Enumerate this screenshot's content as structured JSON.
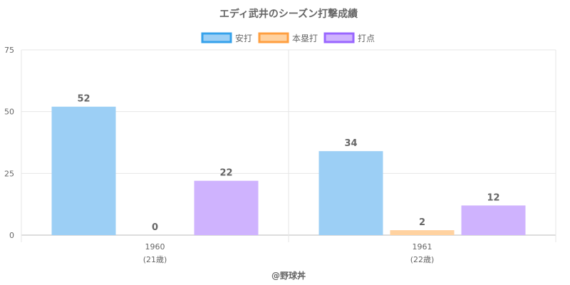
{
  "chart_data": {
    "type": "bar",
    "title": "エディ武井のシーズン打撃成績",
    "categories": [
      {
        "year": "1960",
        "age": "(21歳)"
      },
      {
        "year": "1961",
        "age": "(22歳)"
      }
    ],
    "series": [
      {
        "name": "安打",
        "values": [
          52,
          34
        ],
        "fill": "#9ccff5",
        "stroke": "#36a2eb"
      },
      {
        "name": "本塁打",
        "values": [
          0,
          2
        ],
        "fill": "#ffd2a0",
        "stroke": "#ff9f40"
      },
      {
        "name": "打点",
        "values": [
          22,
          12
        ],
        "fill": "#cfb3fe",
        "stroke": "#9966ff"
      }
    ],
    "ylim": [
      0,
      75
    ],
    "yticks": [
      0,
      25,
      50,
      75
    ],
    "grid": true,
    "legend_position": "top",
    "credit": "@野球丼"
  }
}
